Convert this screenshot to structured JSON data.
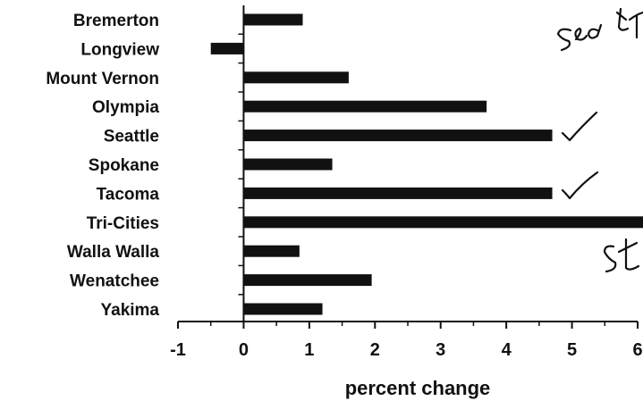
{
  "chart_data": {
    "type": "bar",
    "orientation": "horizontal",
    "categories": [
      "Bremerton",
      "Longview",
      "Mount Vernon",
      "Olympia",
      "Seattle",
      "Spokane",
      "Tacoma",
      "Tri-Cities",
      "Walla Walla",
      "Wenatchee",
      "Yakima"
    ],
    "values": [
      0.9,
      -0.5,
      1.6,
      3.7,
      4.7,
      1.35,
      4.7,
      6.1,
      0.85,
      1.95,
      1.2
    ],
    "xlabel": "percent change",
    "ylabel": "",
    "xlim": [
      -1,
      6
    ],
    "xticks": [
      "-1",
      "0",
      "1",
      "2",
      "3",
      "4",
      "5",
      "6"
    ],
    "bar_color": "#111111",
    "grid": false,
    "annotations": {
      "checkmark_icons": [
        "Seattle",
        "Tacoma"
      ],
      "handwriting_marks": [
        "scribble-top-right",
        "scribble-right"
      ]
    }
  }
}
